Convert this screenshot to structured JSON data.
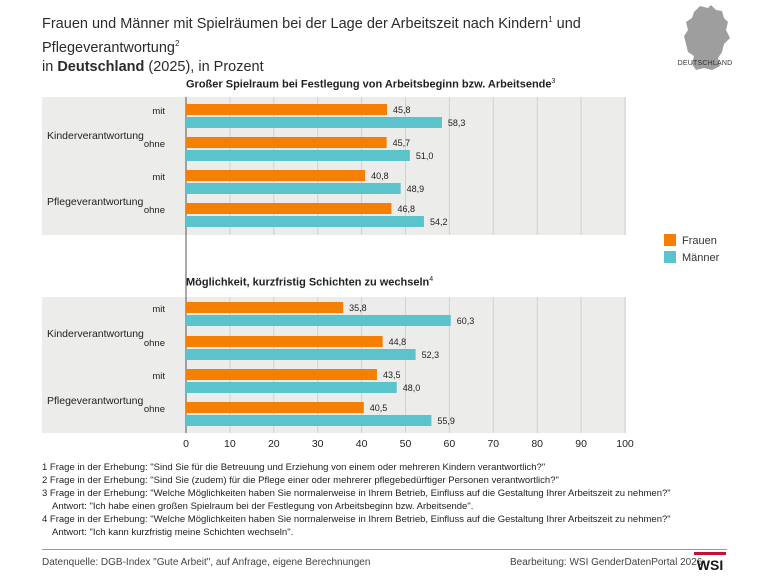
{
  "title": {
    "line1_a": "Frauen und Männer mit Spielräumen bei der Lage der Arbeitszeit nach Kindern",
    "line1_sup1": "1",
    "line1_b": " und Pflegeverantwortung",
    "line1_sup2": "2",
    "line2_a": "in ",
    "line2_bold": "Deutschland",
    "line2_b": " (2025), in Prozent"
  },
  "map": {
    "icon": "germany-map-icon",
    "label": "DEUTSCHLAND",
    "color": "#9e9e9e"
  },
  "legend": [
    {
      "label": "Frauen",
      "color": "#f47f00"
    },
    {
      "label": "Männer",
      "color": "#5bc3cb"
    }
  ],
  "colors": {
    "panel_bg": "#ececeb",
    "frauen": "#f47f00",
    "maenner": "#5bc3cb"
  },
  "chart_data": {
    "type": "bar",
    "orientation": "horizontal",
    "xlim": [
      0,
      100
    ],
    "x_ticks": [
      "0",
      "10",
      "20",
      "30",
      "40",
      "50",
      "60",
      "70",
      "80",
      "90",
      "100"
    ],
    "grid": true,
    "legend_position": "right",
    "series_names": [
      "Frauen",
      "Männer"
    ],
    "panels": [
      {
        "title": "Großer Spielraum bei Festlegung von Arbeitsbeginn bzw. Arbeitsende",
        "title_sup": "3",
        "groups": [
          {
            "label": "Kinderverantwortung",
            "rows": [
              {
                "label": "mit",
                "Frauen": 45.8,
                "Männer": 58.3,
                "Frauen_label": "45,8",
                "Männer_label": "58,3"
              },
              {
                "label": "ohne",
                "Frauen": 45.7,
                "Männer": 51.0,
                "Frauen_label": "45,7",
                "Männer_label": "51,0"
              }
            ]
          },
          {
            "label": "Pflegeverantwortung",
            "rows": [
              {
                "label": "mit",
                "Frauen": 40.8,
                "Männer": 48.9,
                "Frauen_label": "40,8",
                "Männer_label": "48,9"
              },
              {
                "label": "ohne",
                "Frauen": 46.8,
                "Männer": 54.2,
                "Frauen_label": "46,8",
                "Männer_label": "54,2"
              }
            ]
          }
        ]
      },
      {
        "title": "Möglichkeit, kurzfristig Schichten zu wechseln",
        "title_sup": "4",
        "groups": [
          {
            "label": "Kinderverantwortung",
            "rows": [
              {
                "label": "mit",
                "Frauen": 35.8,
                "Männer": 60.3,
                "Frauen_label": "35,8",
                "Männer_label": "60,3"
              },
              {
                "label": "ohne",
                "Frauen": 44.8,
                "Männer": 52.3,
                "Frauen_label": "44,8",
                "Männer_label": "52,3"
              }
            ]
          },
          {
            "label": "Pflegeverantwortung",
            "rows": [
              {
                "label": "mit",
                "Frauen": 43.5,
                "Männer": 48.0,
                "Frauen_label": "43,5",
                "Männer_label": "48,0"
              },
              {
                "label": "ohne",
                "Frauen": 40.5,
                "Männer": 55.9,
                "Frauen_label": "40,5",
                "Männer_label": "55,9"
              }
            ]
          }
        ]
      }
    ]
  },
  "notes": [
    "1 Frage in der Erhebung: \"Sind Sie für die Betreuung und Erziehung von einem oder mehreren Kindern verantwortlich?\"",
    "2 Frage in der Erhebung: \"Sind Sie (zudem) für die Pflege einer oder mehrerer pflegebedürftiger Personen verantwortlich?\"",
    "3 Frage in der Erhebung: \"Welche Möglichkeiten haben Sie normalerweise in Ihrem Betrieb, Einfluss auf die Gestaltung Ihrer Arbeitszeit zu nehmen?\"",
    "    Antwort: \"Ich habe einen großen Spielraum bei der Festlegung von Arbeitsbeginn bzw. Arbeitsende\".",
    "4 Frage in der Erhebung: \"Welche Möglichkeiten haben Sie normalerweise in Ihrem Betrieb, Einfluss auf die Gestaltung Ihrer Arbeitszeit zu nehmen?\"",
    "    Antwort: \"Ich kann kurzfristig meine Schichten wechseln\"."
  ],
  "footer": {
    "source": "Datenquelle: DGB-Index \"Gute Arbeit\", auf Anfrage, eigene Berechnungen",
    "credit": "Bearbeitung: WSI GenderDatenPortal 2026",
    "logo_text": "WSI",
    "logo_color": "#c8102e"
  }
}
